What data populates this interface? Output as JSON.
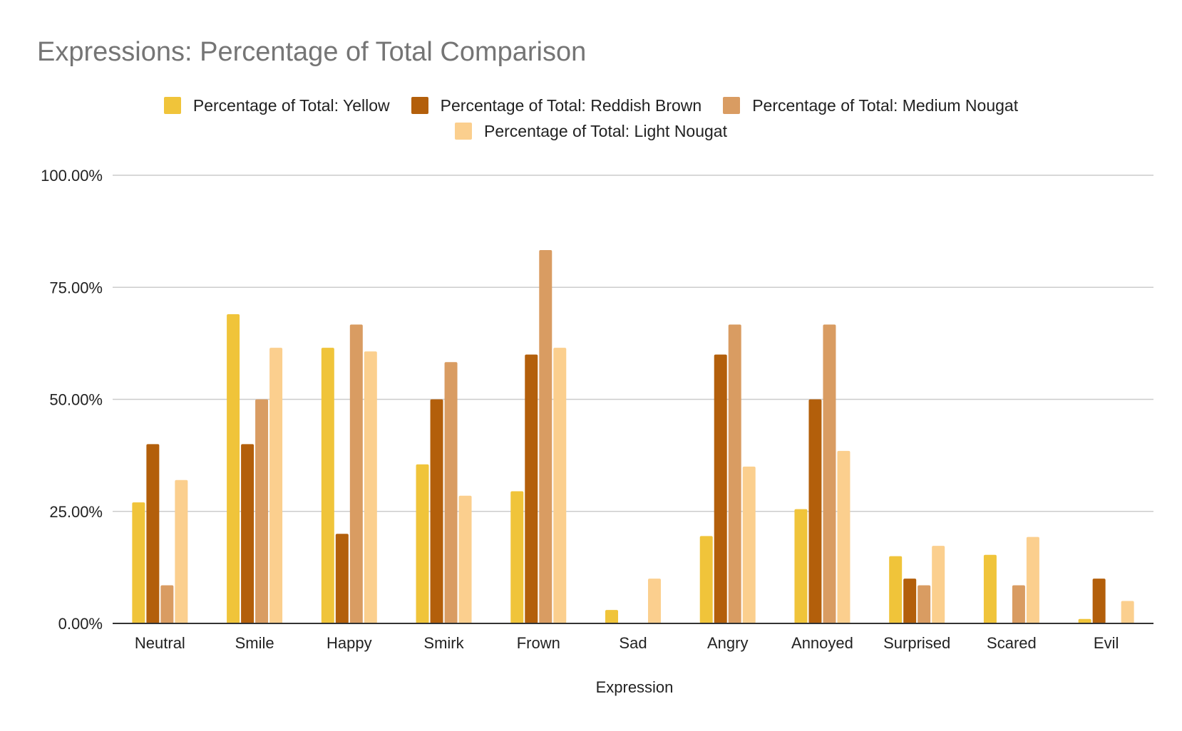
{
  "chart_data": {
    "type": "bar",
    "title": "Expressions: Percentage of Total Comparison",
    "xlabel": "Expression",
    "ylabel": "",
    "ylim": [
      0,
      100
    ],
    "y_ticks": [
      "0.00%",
      "25.00%",
      "50.00%",
      "75.00%",
      "100.00%"
    ],
    "grid": true,
    "legend_position": "top",
    "categories": [
      "Neutral",
      "Smile",
      "Happy",
      "Smirk",
      "Frown",
      "Sad",
      "Angry",
      "Annoyed",
      "Surprised",
      "Scared",
      "Evil"
    ],
    "series": [
      {
        "name": "Percentage of Total: Yellow",
        "color": "#F0C43A",
        "values": [
          27,
          69,
          61.5,
          35.5,
          29.5,
          3,
          19.5,
          25.5,
          15,
          15.3,
          1
        ]
      },
      {
        "name": "Percentage of Total: Reddish Brown",
        "color": "#B35F0B",
        "values": [
          40,
          40,
          20,
          50,
          60,
          0,
          60,
          50,
          10,
          0,
          10
        ]
      },
      {
        "name": "Percentage of Total: Medium Nougat",
        "color": "#D99C62",
        "values": [
          8.5,
          50,
          66.7,
          58.3,
          83.3,
          0,
          66.7,
          66.7,
          8.5,
          8.5,
          0
        ]
      },
      {
        "name": "Percentage of Total: Light Nougat",
        "color": "#FBCF8E",
        "values": [
          32,
          61.5,
          60.7,
          28.5,
          61.5,
          10,
          35,
          38.5,
          17.3,
          19.3,
          5
        ]
      }
    ]
  }
}
